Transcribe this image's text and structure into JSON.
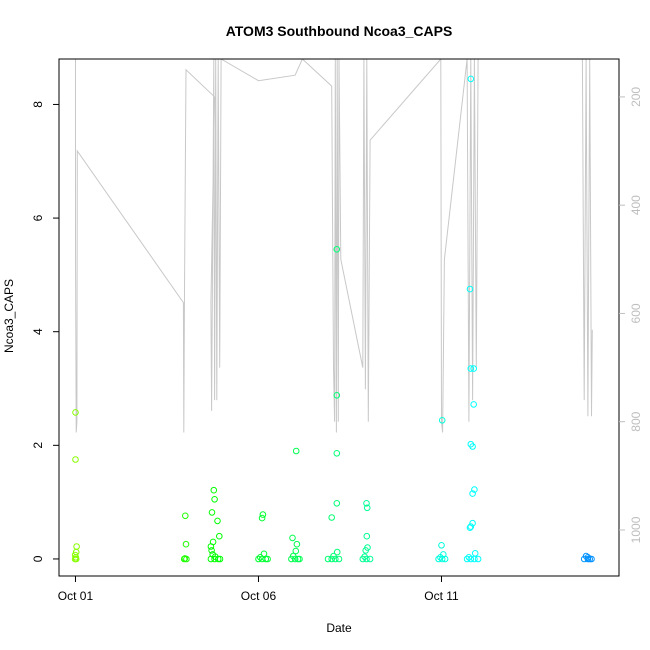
{
  "chart_data": {
    "type": "scatter",
    "title": "ATOM3 Southbound Ncoa3_CAPS",
    "xlabel": "Date",
    "ylabel": "Ncoa3_CAPS",
    "x_ticks": [
      {
        "value": 1,
        "label": "Oct 01"
      },
      {
        "value": 6,
        "label": "Oct 06"
      },
      {
        "value": 11,
        "label": "Oct 11"
      }
    ],
    "xlim": [
      0.55,
      15.85
    ],
    "ylim": [
      -0.3,
      8.8
    ],
    "y_ticks": [
      0,
      2,
      4,
      6,
      8
    ],
    "right_axis": {
      "reversed": true,
      "lim": [
        1085,
        130
      ],
      "ticks": [
        200,
        400,
        600,
        800,
        1000
      ],
      "color": "#bebebe"
    },
    "grid": false,
    "legend": "none",
    "points": [
      {
        "x": 1.0,
        "y": 2.58
      },
      {
        "x": 1.0,
        "y": 1.75
      },
      {
        "x": 1.03,
        "y": 0.22
      },
      {
        "x": 1.02,
        "y": 0.12
      },
      {
        "x": 0.99,
        "y": 0.07
      },
      {
        "x": 1.01,
        "y": 0.03
      },
      {
        "x": 1.02,
        "y": 0.0
      },
      {
        "x": 0.99,
        "y": 0.0
      },
      {
        "x": 4.0,
        "y": 0.76
      },
      {
        "x": 4.02,
        "y": 0.26
      },
      {
        "x": 3.99,
        "y": 0.01
      },
      {
        "x": 4.03,
        "y": 0.0
      },
      {
        "x": 3.97,
        "y": 0.0
      },
      {
        "x": 4.78,
        "y": 1.21
      },
      {
        "x": 4.8,
        "y": 1.05
      },
      {
        "x": 4.73,
        "y": 0.82
      },
      {
        "x": 4.88,
        "y": 0.67
      },
      {
        "x": 4.93,
        "y": 0.4
      },
      {
        "x": 4.76,
        "y": 0.3
      },
      {
        "x": 4.7,
        "y": 0.22
      },
      {
        "x": 4.72,
        "y": 0.15
      },
      {
        "x": 4.75,
        "y": 0.08
      },
      {
        "x": 4.82,
        "y": 0.04
      },
      {
        "x": 4.7,
        "y": 0.0
      },
      {
        "x": 4.8,
        "y": 0.0
      },
      {
        "x": 4.9,
        "y": 0.0
      },
      {
        "x": 4.95,
        "y": 0.0
      },
      {
        "x": 6.12,
        "y": 0.78
      },
      {
        "x": 6.1,
        "y": 0.72
      },
      {
        "x": 6.15,
        "y": 0.09
      },
      {
        "x": 6.05,
        "y": 0.03
      },
      {
        "x": 6.0,
        "y": 0.0
      },
      {
        "x": 6.1,
        "y": 0.0
      },
      {
        "x": 6.2,
        "y": 0.0
      },
      {
        "x": 6.25,
        "y": 0.0
      },
      {
        "x": 7.03,
        "y": 1.9
      },
      {
        "x": 6.93,
        "y": 0.37
      },
      {
        "x": 7.05,
        "y": 0.26
      },
      {
        "x": 7.02,
        "y": 0.14
      },
      {
        "x": 6.95,
        "y": 0.05
      },
      {
        "x": 6.9,
        "y": 0.0
      },
      {
        "x": 7.0,
        "y": 0.0
      },
      {
        "x": 7.08,
        "y": 0.0
      },
      {
        "x": 7.12,
        "y": 0.0
      },
      {
        "x": 8.14,
        "y": 5.45
      },
      {
        "x": 8.14,
        "y": 2.88
      },
      {
        "x": 8.14,
        "y": 1.86
      },
      {
        "x": 8.14,
        "y": 0.98
      },
      {
        "x": 8.0,
        "y": 0.73
      },
      {
        "x": 8.15,
        "y": 0.12
      },
      {
        "x": 8.05,
        "y": 0.05
      },
      {
        "x": 7.9,
        "y": 0.0
      },
      {
        "x": 8.0,
        "y": 0.0
      },
      {
        "x": 8.1,
        "y": 0.0
      },
      {
        "x": 8.2,
        "y": 0.0
      },
      {
        "x": 8.95,
        "y": 0.98
      },
      {
        "x": 8.97,
        "y": 0.9
      },
      {
        "x": 8.96,
        "y": 0.4
      },
      {
        "x": 8.98,
        "y": 0.2
      },
      {
        "x": 8.93,
        "y": 0.15
      },
      {
        "x": 8.9,
        "y": 0.04
      },
      {
        "x": 8.85,
        "y": 0.0
      },
      {
        "x": 8.95,
        "y": 0.0
      },
      {
        "x": 9.05,
        "y": 0.0
      },
      {
        "x": 11.02,
        "y": 2.44
      },
      {
        "x": 11.0,
        "y": 0.24
      },
      {
        "x": 11.05,
        "y": 0.08
      },
      {
        "x": 10.97,
        "y": 0.03
      },
      {
        "x": 10.92,
        "y": 0.0
      },
      {
        "x": 11.02,
        "y": 0.0
      },
      {
        "x": 11.1,
        "y": 0.0
      },
      {
        "x": 11.8,
        "y": 8.45
      },
      {
        "x": 11.78,
        "y": 4.75
      },
      {
        "x": 11.8,
        "y": 3.35
      },
      {
        "x": 11.88,
        "y": 3.35
      },
      {
        "x": 11.88,
        "y": 2.72
      },
      {
        "x": 11.8,
        "y": 2.02
      },
      {
        "x": 11.85,
        "y": 1.98
      },
      {
        "x": 11.9,
        "y": 1.22
      },
      {
        "x": 11.85,
        "y": 1.15
      },
      {
        "x": 11.85,
        "y": 0.63
      },
      {
        "x": 11.8,
        "y": 0.57
      },
      {
        "x": 11.78,
        "y": 0.55
      },
      {
        "x": 11.92,
        "y": 0.1
      },
      {
        "x": 11.75,
        "y": 0.03
      },
      {
        "x": 11.7,
        "y": 0.0
      },
      {
        "x": 11.8,
        "y": 0.0
      },
      {
        "x": 11.9,
        "y": 0.0
      },
      {
        "x": 12.0,
        "y": 0.0
      },
      {
        "x": 14.95,
        "y": 0.05
      },
      {
        "x": 15.0,
        "y": 0.03
      },
      {
        "x": 14.9,
        "y": 0.0
      },
      {
        "x": 15.0,
        "y": 0.0
      },
      {
        "x": 15.05,
        "y": 0.0
      },
      {
        "x": 15.1,
        "y": 0.0
      }
    ],
    "gray_line": [
      {
        "x": 1.0,
        "y": 130
      },
      {
        "x": 1.0,
        "y": 480
      },
      {
        "x": 1.02,
        "y": 820
      },
      {
        "x": 1.04,
        "y": 800
      },
      {
        "x": 1.05,
        "y": 300
      },
      {
        "x": 3.95,
        "y": 580
      },
      {
        "x": 3.96,
        "y": 820
      },
      {
        "x": 3.98,
        "y": 560
      },
      {
        "x": 4.02,
        "y": 150
      },
      {
        "x": 4.8,
        "y": 200
      },
      {
        "x": 4.7,
        "y": 580
      },
      {
        "x": 4.72,
        "y": 780
      },
      {
        "x": 4.76,
        "y": 350
      },
      {
        "x": 4.78,
        "y": 130
      },
      {
        "x": 4.8,
        "y": 760
      },
      {
        "x": 4.83,
        "y": 130
      },
      {
        "x": 4.86,
        "y": 760
      },
      {
        "x": 4.9,
        "y": 130
      },
      {
        "x": 4.94,
        "y": 700
      },
      {
        "x": 4.98,
        "y": 130
      },
      {
        "x": 6.0,
        "y": 170
      },
      {
        "x": 7.0,
        "y": 160
      },
      {
        "x": 7.2,
        "y": 130
      },
      {
        "x": 8.0,
        "y": 180
      },
      {
        "x": 8.05,
        "y": 700
      },
      {
        "x": 8.08,
        "y": 800
      },
      {
        "x": 8.1,
        "y": 130
      },
      {
        "x": 8.13,
        "y": 820
      },
      {
        "x": 8.15,
        "y": 130
      },
      {
        "x": 8.18,
        "y": 800
      },
      {
        "x": 8.2,
        "y": 130
      },
      {
        "x": 8.25,
        "y": 500
      },
      {
        "x": 8.85,
        "y": 700
      },
      {
        "x": 8.88,
        "y": 130
      },
      {
        "x": 8.92,
        "y": 740
      },
      {
        "x": 8.96,
        "y": 130
      },
      {
        "x": 9.0,
        "y": 800
      },
      {
        "x": 9.05,
        "y": 280
      },
      {
        "x": 10.98,
        "y": 130
      },
      {
        "x": 11.0,
        "y": 800
      },
      {
        "x": 11.03,
        "y": 820
      },
      {
        "x": 11.08,
        "y": 500
      },
      {
        "x": 11.7,
        "y": 130
      },
      {
        "x": 11.75,
        "y": 800
      },
      {
        "x": 11.8,
        "y": 130
      },
      {
        "x": 11.85,
        "y": 760
      },
      {
        "x": 11.9,
        "y": 130
      },
      {
        "x": 11.95,
        "y": 700
      },
      {
        "x": 12.0,
        "y": 130
      },
      {
        "x": 14.85,
        "y": 130
      },
      {
        "x": 14.9,
        "y": 760
      },
      {
        "x": 14.95,
        "y": 130
      },
      {
        "x": 15.0,
        "y": 790
      },
      {
        "x": 15.05,
        "y": 130
      },
      {
        "x": 15.1,
        "y": 790
      },
      {
        "x": 15.12,
        "y": 630
      }
    ]
  }
}
